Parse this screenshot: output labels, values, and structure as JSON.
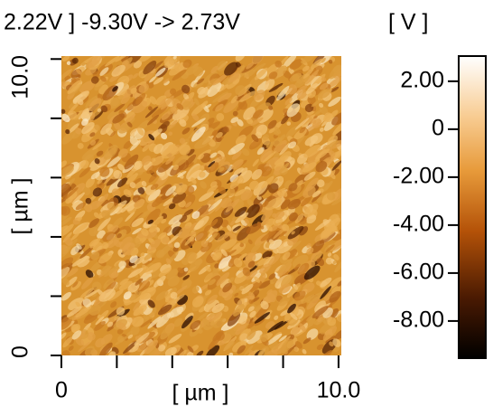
{
  "chart_data": {
    "type": "image-map",
    "title": "2.22V ] -9.30V   -> 2.73V",
    "x_label": "[ µm ]",
    "y_label": "[ µm ]",
    "colorbar_label": "[ V ]",
    "xlim": [
      0,
      10.1
    ],
    "ylim": [
      0,
      10.1
    ],
    "xticks": [
      0,
      {
        "value": 10,
        "label": "10.0"
      }
    ],
    "yticks": [
      0,
      {
        "value": 10,
        "label": "10.0"
      }
    ],
    "xminorticks": [
      2,
      4,
      6,
      8
    ],
    "yminorticks": [
      2,
      4,
      6,
      8
    ],
    "clim": [
      -9.55,
      3.05
    ],
    "cticks": [
      {
        "value": 2,
        "label": "2.00"
      },
      0,
      {
        "value": -2,
        "label": "-2.00"
      },
      {
        "value": -4,
        "label": "-4.00"
      },
      {
        "value": -6,
        "label": "-6.00"
      },
      {
        "value": -8,
        "label": "-8.00"
      }
    ]
  }
}
